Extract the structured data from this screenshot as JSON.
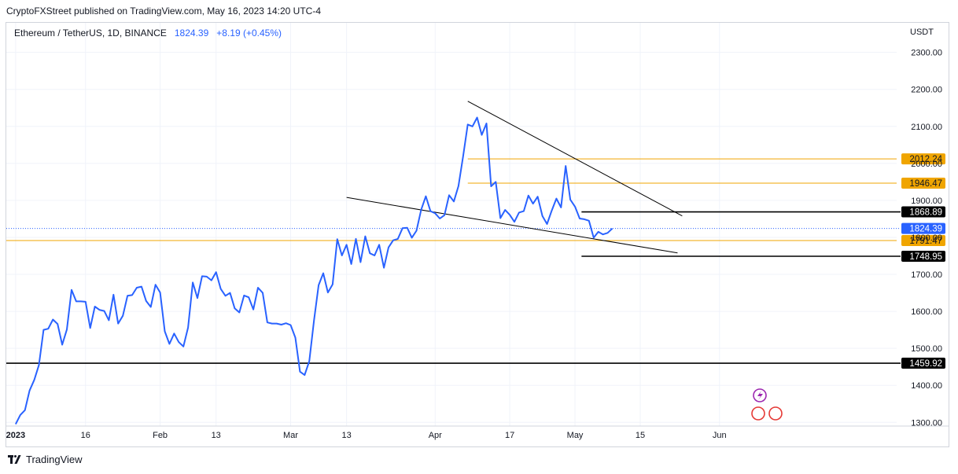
{
  "header": {
    "published": "CryptoFXStreet published on TradingView.com, May 16, 2023 14:20 UTC-4"
  },
  "legend": {
    "symbol": "Ethereum / TetherUS, 1D, BINANCE",
    "price": "1824.39",
    "change": "+8.19 (+0.45%)"
  },
  "colors": {
    "line": "#2962ff",
    "level": "#f0a500",
    "grid": "#f0f3fa"
  },
  "chart_data": {
    "type": "line",
    "currency": "USDT",
    "y_range": [
      1290,
      2380
    ],
    "x_range_days": [
      -2,
      189
    ],
    "x_ticks": [
      {
        "label": "2023",
        "day": 0
      },
      {
        "label": "16",
        "day": 15
      },
      {
        "label": "Feb",
        "day": 31
      },
      {
        "label": "13",
        "day": 43
      },
      {
        "label": "Mar",
        "day": 59
      },
      {
        "label": "13",
        "day": 71
      },
      {
        "label": "Apr",
        "day": 90
      },
      {
        "label": "17",
        "day": 106
      },
      {
        "label": "May",
        "day": 120
      },
      {
        "label": "15",
        "day": 134
      },
      {
        "label": "Jun",
        "day": 151
      }
    ],
    "y_ticks": [
      "2300.00",
      "2200.00",
      "2100.00",
      "2000.00",
      "1900.00",
      "1800.00",
      "1700.00",
      "1600.00",
      "1500.00",
      "1400.00",
      "1300.00"
    ],
    "series": [
      {
        "values": [
          1295,
          1320,
          1333,
          1386,
          1415,
          1455,
          1550,
          1553,
          1578,
          1566,
          1510,
          1551,
          1658,
          1627,
          1627,
          1626,
          1555,
          1613,
          1604,
          1601,
          1576,
          1645,
          1567,
          1588,
          1642,
          1644,
          1664,
          1667,
          1628,
          1612,
          1672,
          1651,
          1546,
          1512,
          1540,
          1517,
          1505,
          1556,
          1678,
          1636,
          1695,
          1694,
          1684,
          1706,
          1661,
          1642,
          1650,
          1608,
          1597,
          1643,
          1638,
          1605,
          1664,
          1650,
          1570,
          1567,
          1567,
          1564,
          1568,
          1563,
          1529,
          1437,
          1428,
          1465,
          1575,
          1671,
          1703,
          1651,
          1673,
          1795,
          1751,
          1780,
          1728,
          1796,
          1733,
          1803,
          1757,
          1751,
          1780,
          1718,
          1773,
          1792,
          1796,
          1825,
          1826,
          1799,
          1818,
          1875,
          1911,
          1871,
          1865,
          1851,
          1860,
          1914,
          1897,
          1939,
          2019,
          2105,
          2100,
          2124,
          2077,
          2108,
          1938,
          1950,
          1852,
          1874,
          1861,
          1842,
          1867,
          1871,
          1913,
          1891,
          1910,
          1858,
          1836,
          1872,
          1905,
          1881,
          1993,
          1902,
          1883,
          1851,
          1849,
          1845,
          1799,
          1815,
          1808,
          1812,
          1824
        ]
      }
    ],
    "levels": [
      {
        "value": 2012.24,
        "label": "2012.24",
        "style": "orange",
        "line_from_day": 97
      },
      {
        "value": 1946.47,
        "label": "1946.47",
        "style": "orange",
        "line_from_day": 97
      },
      {
        "value": 1868.89,
        "label": "1868.89",
        "style": "black",
        "line_from_day": 121.4
      },
      {
        "value": 1791.47,
        "label": "1791.47",
        "style": "orange",
        "line_from_day": -2
      },
      {
        "value": 1748.95,
        "label": "1748.95",
        "style": "black",
        "line_from_day": 121.4
      },
      {
        "value": 1459.92,
        "label": "1459.92",
        "style": "black",
        "line_from_day": -2
      }
    ],
    "trendlines": [
      {
        "from": {
          "day": 97,
          "value": 2168
        },
        "to": {
          "day": 143,
          "value": 1858
        }
      },
      {
        "from": {
          "day": 71,
          "value": 1908
        },
        "to": {
          "day": 142,
          "value": 1758
        }
      }
    ],
    "last_price_label": "1824.39"
  },
  "footer": {
    "brand": "TradingView"
  }
}
